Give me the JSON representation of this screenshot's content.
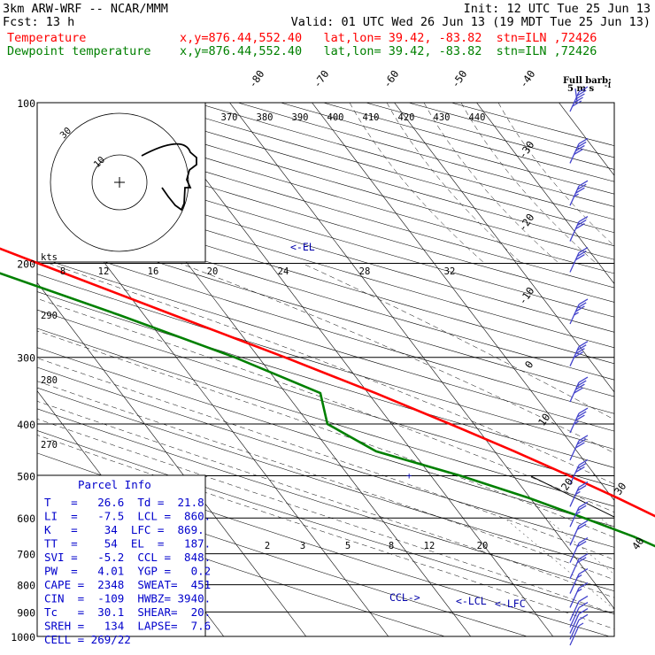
{
  "header": {
    "left1": "3km ARW-WRF -- NCAR/MMM",
    "left2": "Fcst:   13 h",
    "init": "Init: 12 UTC Tue 25 Jun 13",
    "valid": "Valid: 01 UTC Wed 26 Jun 13 (19 MDT Tue 25 Jun 13)",
    "temp_label": "Temperature",
    "dew_label": "Dewpoint temperature",
    "temp_loc": "x,y=876.44,552.40   lat,lon= 39.42, -83.82  stn=ILN ,72426",
    "dew_loc": "x,y=876.44,552.40   lat,lon= 39.42, -83.82  stn=ILN ,72426"
  },
  "colors": {
    "temperature": "#ff0000",
    "dewpoint": "#008000",
    "parcel_text": "#0000cc",
    "barbs": "#4444cc"
  },
  "full_barb": {
    "line1": "Full barb:",
    "line2": "5 m s",
    "sup": "-1"
  },
  "parcel_info": {
    "title": "Parcel Info",
    "rows": [
      "T   =   26.6  Td =  21.8",
      "LI  =   -7.5  LCL =  860.",
      "K   =    34  LFC =  869.",
      "TT  =    54  EL  =   187.",
      "SVI =   -5.2  CCL =  848.",
      "PW  =   4.01  YGP =   0.2",
      "CAPE =  2348  SWEAT=  451",
      "CIN  =  -109  HWBZ= 3940.",
      "Tc   =  30.1  SHEAR=  20.",
      "SREH =   134  LAPSE=  7.6",
      "CELL = 269/22"
    ]
  },
  "hodograph": {
    "units": "kts",
    "ring_label": "30",
    "inner_ring_label": "10"
  },
  "chart_data": {
    "type": "line",
    "x_label": "",
    "y_label": "",
    "pressure_levels": [
      100,
      200,
      300,
      400,
      500,
      600,
      700,
      800,
      900,
      1000
    ],
    "isotherm_labels": [
      -80,
      -70,
      -60,
      -50,
      -40,
      -30,
      -20,
      -10,
      0,
      10,
      20,
      30,
      40
    ],
    "theta_labels": [
      370,
      380,
      390,
      400,
      410,
      420,
      430,
      440
    ],
    "theta_left_labels": [
      290,
      280,
      270
    ],
    "mixing_ratio_labels_top": [
      8,
      12,
      16,
      20,
      24,
      28,
      32
    ],
    "mixing_ratio_labels_low": [
      2,
      3,
      5,
      8,
      12,
      20
    ],
    "markers": [
      "<-EL",
      "<-LCL",
      "<-LFC",
      "CCL->"
    ],
    "series": [
      {
        "name": "Temperature",
        "points": [
          [
            1000,
            30.3
          ],
          [
            975,
            28.8
          ],
          [
            950,
            27.6
          ],
          [
            925,
            24.3
          ],
          [
            900,
            21.5
          ],
          [
            875,
            19.6
          ],
          [
            850,
            18.7
          ],
          [
            800,
            17.0
          ],
          [
            750,
            15.8
          ],
          [
            700,
            12.6
          ],
          [
            650,
            8.0
          ],
          [
            600,
            3.8
          ],
          [
            550,
            0.6
          ],
          [
            500,
            -3.2
          ],
          [
            450,
            -7.6
          ],
          [
            400,
            -12.9
          ],
          [
            350,
            -19.1
          ],
          [
            300,
            -26.8
          ],
          [
            250,
            -36.4
          ],
          [
            200,
            -48.1
          ],
          [
            175,
            -55.0
          ],
          [
            150,
            -60.4
          ],
          [
            125,
            -58.5
          ],
          [
            100,
            -57.0
          ]
        ]
      },
      {
        "name": "Dewpoint temperature",
        "points": [
          [
            1000,
            21.9
          ],
          [
            975,
            21.4
          ],
          [
            950,
            20.6
          ],
          [
            925,
            19.4
          ],
          [
            900,
            16.5
          ],
          [
            875,
            14.8
          ],
          [
            850,
            10.9
          ],
          [
            800,
            6.2
          ],
          [
            750,
            4.6
          ],
          [
            700,
            2.1
          ],
          [
            650,
            -1.0
          ],
          [
            600,
            -5.3
          ],
          [
            550,
            -10.2
          ],
          [
            500,
            -16.4
          ],
          [
            450,
            -24.4
          ],
          [
            400,
            -27.8
          ],
          [
            350,
            -25.8
          ],
          [
            300,
            -32.9
          ],
          [
            250,
            -43.0
          ],
          [
            200,
            -56.2
          ],
          [
            175,
            -65.8
          ],
          [
            150,
            -74.3
          ],
          [
            125,
            -83.3
          ],
          [
            100,
            -92.3
          ]
        ]
      }
    ],
    "wind_barbs": [
      {
        "p": 100,
        "speed_kt": 50
      },
      {
        "p": 125,
        "speed_kt": 40
      },
      {
        "p": 150,
        "speed_kt": 35
      },
      {
        "p": 175,
        "speed_kt": 30
      },
      {
        "p": 200,
        "speed_kt": 30
      },
      {
        "p": 250,
        "speed_kt": 35
      },
      {
        "p": 300,
        "speed_kt": 40
      },
      {
        "p": 350,
        "speed_kt": 40
      },
      {
        "p": 400,
        "speed_kt": 35
      },
      {
        "p": 450,
        "speed_kt": 30
      },
      {
        "p": 500,
        "speed_kt": 30
      },
      {
        "p": 550,
        "speed_kt": 25
      },
      {
        "p": 600,
        "speed_kt": 25
      },
      {
        "p": 650,
        "speed_kt": 20
      },
      {
        "p": 700,
        "speed_kt": 20
      },
      {
        "p": 750,
        "speed_kt": 20
      },
      {
        "p": 800,
        "speed_kt": 15
      },
      {
        "p": 850,
        "speed_kt": 15
      },
      {
        "p": 900,
        "speed_kt": 10
      },
      {
        "p": 925,
        "speed_kt": 10
      },
      {
        "p": 950,
        "speed_kt": 10
      },
      {
        "p": 975,
        "speed_kt": 10
      },
      {
        "p": 1000,
        "speed_kt": 5
      }
    ]
  }
}
